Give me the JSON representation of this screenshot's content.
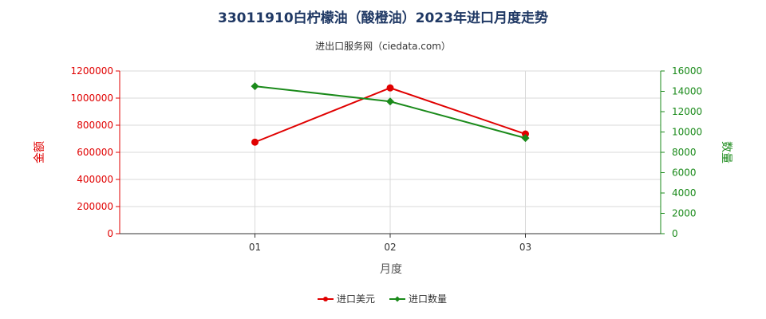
{
  "chart_data": {
    "type": "line",
    "title": "33011910白柠檬油（酸橙油）2023年进口月度走势",
    "subtitle": "进出口服务网（ciedata.com）",
    "xlabel": "月度",
    "ylabel_left": "金额",
    "ylabel_right": "数量",
    "categories": [
      "01",
      "02",
      "03"
    ],
    "ylim_left": [
      0,
      1200000
    ],
    "ylim_right": [
      0,
      16000
    ],
    "yticks_left": [
      "0",
      "200000",
      "400000",
      "600000",
      "800000",
      "1000000",
      "1200000"
    ],
    "yticks_right": [
      "0",
      "2000",
      "4000",
      "6000",
      "8000",
      "10000",
      "12000",
      "14000",
      "16000"
    ],
    "grid": true,
    "legend_position": "bottom",
    "series": [
      {
        "name": "进口美元",
        "axis": "left",
        "color": "#e00000",
        "marker": "circle",
        "values": [
          675000,
          1075000,
          735000
        ]
      },
      {
        "name": "进口数量",
        "axis": "right",
        "color": "#1a8a1a",
        "marker": "diamond",
        "values": [
          14500,
          13000,
          9400
        ]
      }
    ]
  }
}
